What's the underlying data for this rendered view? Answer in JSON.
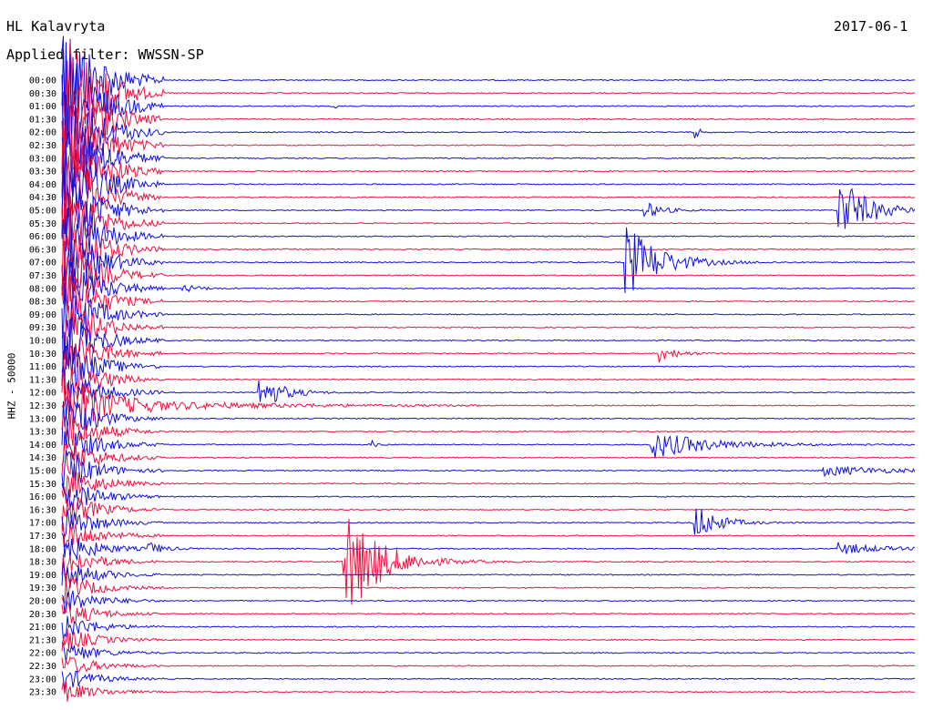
{
  "header": {
    "station": "HL Kalavryta",
    "datetime": "2017-06-1",
    "filter": "Applied filter: WWSSN-SP"
  },
  "chart_data": {
    "type": "helicorder",
    "ylabel": "HHZ - 50000",
    "rows": [
      "00:00",
      "00:30",
      "01:00",
      "01:30",
      "02:00",
      "02:30",
      "03:00",
      "03:30",
      "04:00",
      "04:30",
      "05:00",
      "05:30",
      "06:00",
      "06:30",
      "07:00",
      "07:30",
      "08:00",
      "08:30",
      "09:00",
      "09:30",
      "10:00",
      "10:30",
      "11:00",
      "11:30",
      "12:00",
      "12:30",
      "13:00",
      "13:30",
      "14:00",
      "14:30",
      "15:00",
      "15:30",
      "16:00",
      "16:30",
      "17:00",
      "17:30",
      "18:00",
      "18:30",
      "19:00",
      "19:30",
      "20:00",
      "20:30",
      "21:00",
      "21:30",
      "22:00",
      "22:30",
      "23:00",
      "23:30"
    ],
    "colors": {
      "even": "#1010d8",
      "odd": "#ee1040"
    },
    "events": [
      {
        "row": 1,
        "t": 0.04,
        "amp": 14,
        "dur": 0.03
      },
      {
        "row": 10,
        "t": 0.68,
        "amp": 12,
        "dur": 0.03
      },
      {
        "row": 10,
        "t": 0.91,
        "amp": 40,
        "dur": 0.05
      },
      {
        "row": 14,
        "t": 0.66,
        "amp": 44,
        "dur": 0.06
      },
      {
        "row": 16,
        "t": 0.14,
        "amp": 5,
        "dur": 0.03
      },
      {
        "row": 21,
        "t": 0.7,
        "amp": 10,
        "dur": 0.03
      },
      {
        "row": 24,
        "t": 0.23,
        "amp": 22,
        "dur": 0.04
      },
      {
        "row": 28,
        "t": 0.69,
        "amp": 16,
        "dur": 0.1
      },
      {
        "row": 30,
        "t": 0.89,
        "amp": 6,
        "dur": 0.12
      },
      {
        "row": 34,
        "t": 0.74,
        "amp": 24,
        "dur": 0.04
      },
      {
        "row": 36,
        "t": 0.1,
        "amp": 7,
        "dur": 0.03
      },
      {
        "row": 36,
        "t": 0.91,
        "amp": 7,
        "dur": 0.07
      },
      {
        "row": 37,
        "t": 0.33,
        "amp": 70,
        "dur": 0.06
      },
      {
        "row": 2,
        "t": 0.32,
        "amp": 5,
        "dur": 0.01
      },
      {
        "row": 4,
        "t": 0.74,
        "amp": 10,
        "dur": 0.01
      },
      {
        "row": 28,
        "t": 0.36,
        "amp": 7,
        "dur": 0.01
      }
    ],
    "big_event": {
      "start_row": 0,
      "t": 0.0,
      "amp": 90,
      "decay_rows": 24
    },
    "coda_row": 25
  }
}
